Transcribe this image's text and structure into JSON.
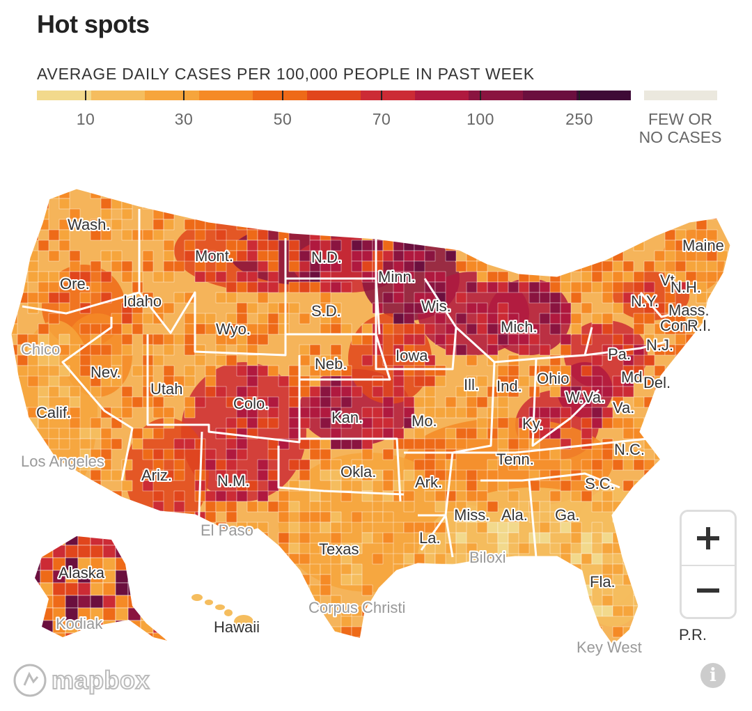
{
  "title": "Hot spots",
  "subtitle": "AVERAGE DAILY CASES PER 100,000 PEOPLE IN PAST WEEK",
  "legend": {
    "colors": [
      "#f2d98c",
      "#f5bd5e",
      "#f6a53c",
      "#f58a26",
      "#ee6a18",
      "#e1461c",
      "#cc2b35",
      "#b0193f",
      "#8a1440",
      "#6b0f3e",
      "#3e0a36"
    ],
    "ticks": [
      "10",
      "30",
      "50",
      "70",
      "100",
      "250"
    ],
    "few_cases_color": "#ebe8de",
    "few_cases_label_line1": "FEW OR",
    "few_cases_label_line2": "NO CASES"
  },
  "labels": {
    "states": [
      "Wash.",
      "Mont.",
      "N.D.",
      "Minn.",
      "Ore.",
      "Idaho",
      "S.D.",
      "Wis.",
      "Wyo.",
      "Mich.",
      "Neb.",
      "Iowa",
      "Nev.",
      "Utah",
      "Colo.",
      "Ill.",
      "Ind.",
      "Ohio",
      "Pa.",
      "Calif.",
      "Kan.",
      "Mo.",
      "Ky.",
      "W.Va.",
      "Va.",
      "Md.",
      "Del.",
      "N.J.",
      "N.Y.",
      "Vt.",
      "N.H.",
      "Maine",
      "Mass.",
      "Conn.",
      "R.I.",
      "Ariz.",
      "N.M.",
      "Okla.",
      "Ark.",
      "Tenn.",
      "N.C.",
      "S.C.",
      "Miss.",
      "Ala.",
      "Ga.",
      "La.",
      "Texas",
      "Fla.",
      "Alaska",
      "Hawaii",
      "P.R."
    ],
    "cities": [
      "Chico",
      "Los Angeles",
      "El Paso",
      "Biloxi",
      "Corpus Christi",
      "Key West",
      "Kodiak"
    ]
  },
  "controls": {
    "zoom_in_icon": "plus-icon",
    "zoom_out_icon": "minus-icon",
    "attribution": "mapbox",
    "info_icon": "i"
  }
}
